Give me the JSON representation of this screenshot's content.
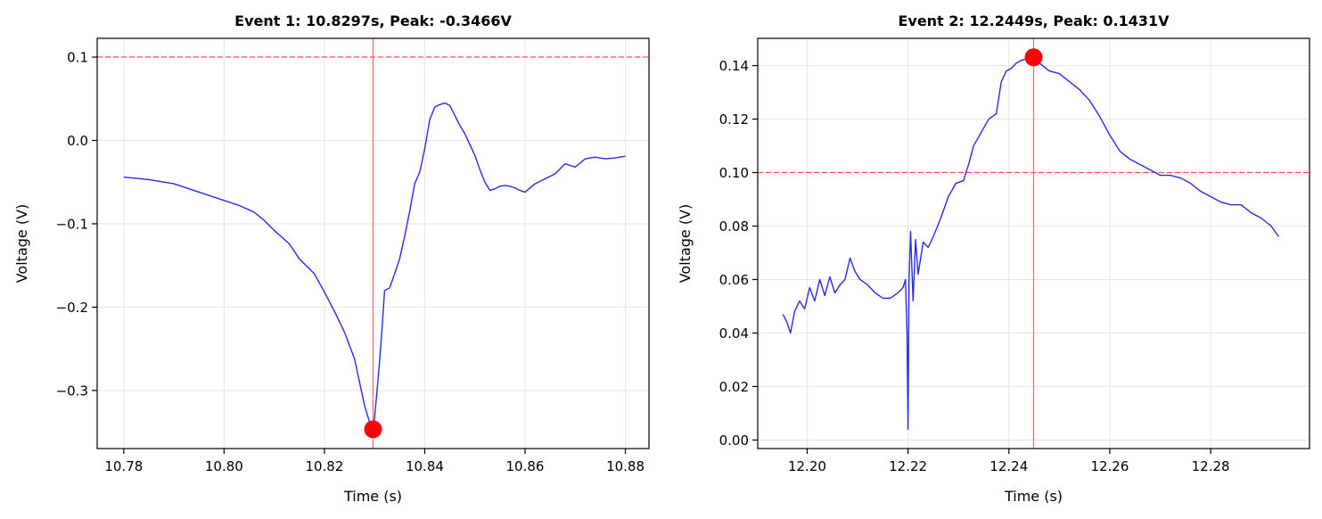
{
  "figure": {
    "background": "#ffffff",
    "colors": {
      "signal": "#2a2ae6",
      "threshold": "#ff4d4d",
      "marker": "#ff0000",
      "vline": "#ff6666",
      "grid": "#e6e6e6"
    }
  },
  "chart_data": [
    {
      "type": "line",
      "title": "Event 1: 10.8297s, Peak: -0.3466V",
      "xlabel": "Time (s)",
      "ylabel": "Voltage (V)",
      "xlim": [
        10.7747,
        10.8847
      ],
      "ylim": [
        -0.3697,
        0.1225
      ],
      "xticks": [
        10.78,
        10.8,
        10.82,
        10.84,
        10.86,
        10.88
      ],
      "xtick_labels": [
        "10.78",
        "10.80",
        "10.82",
        "10.84",
        "10.86",
        "10.88"
      ],
      "yticks": [
        -0.3,
        -0.2,
        -0.1,
        0.0,
        0.1
      ],
      "ytick_labels": [
        "−0.3",
        "−0.2",
        "−0.1",
        "0.0",
        "0.1"
      ],
      "grid": true,
      "threshold": 0.1,
      "event_time": 10.8297,
      "peak": {
        "x": 10.8297,
        "y": -0.3466
      },
      "series": [
        {
          "x": [
            10.78,
            10.785,
            10.79,
            10.795,
            10.8,
            10.803,
            10.806,
            10.808,
            10.81,
            10.813,
            10.815,
            10.818,
            10.82,
            10.822,
            10.824,
            10.825,
            10.826,
            10.827,
            10.828,
            10.829,
            10.8297,
            10.83,
            10.8305,
            10.831,
            10.8315,
            10.832,
            10.833,
            10.834,
            10.835,
            10.836,
            10.837,
            10.838,
            10.839,
            10.84,
            10.841,
            10.842,
            10.843,
            10.844,
            10.845,
            10.846,
            10.847,
            10.848,
            10.849,
            10.85,
            10.851,
            10.852,
            10.853,
            10.854,
            10.855,
            10.856,
            10.857,
            10.858,
            10.859,
            10.86,
            10.862,
            10.864,
            10.866,
            10.868,
            10.87,
            10.872,
            10.874,
            10.876,
            10.878,
            10.88
          ],
          "y": [
            -0.044,
            -0.047,
            -0.052,
            -0.062,
            -0.072,
            -0.078,
            -0.086,
            -0.096,
            -0.108,
            -0.124,
            -0.142,
            -0.16,
            -0.182,
            -0.205,
            -0.23,
            -0.246,
            -0.262,
            -0.29,
            -0.318,
            -0.338,
            -0.3466,
            -0.333,
            -0.3,
            -0.265,
            -0.225,
            -0.18,
            -0.177,
            -0.16,
            -0.142,
            -0.115,
            -0.085,
            -0.052,
            -0.038,
            -0.01,
            0.025,
            0.04,
            0.043,
            0.045,
            0.042,
            0.03,
            0.018,
            0.008,
            -0.005,
            -0.018,
            -0.035,
            -0.05,
            -0.06,
            -0.058,
            -0.055,
            -0.054,
            -0.055,
            -0.057,
            -0.06,
            -0.062,
            -0.052,
            -0.046,
            -0.04,
            -0.028,
            -0.032,
            -0.022,
            -0.02,
            -0.022,
            -0.021,
            -0.019
          ]
        }
      ]
    },
    {
      "type": "line",
      "title": "Event 2: 12.2449s, Peak: 0.1431V",
      "xlabel": "Time (s)",
      "ylabel": "Voltage (V)",
      "xlim": [
        12.1902,
        12.2996
      ],
      "ylim": [
        -0.0032,
        0.1502
      ],
      "xticks": [
        12.2,
        12.22,
        12.24,
        12.26,
        12.28
      ],
      "xtick_labels": [
        "12.20",
        "12.22",
        "12.24",
        "12.26",
        "12.28"
      ],
      "yticks": [
        0.0,
        0.02,
        0.04,
        0.06,
        0.08,
        0.1,
        0.12,
        0.14
      ],
      "ytick_labels": [
        "0.00",
        "0.02",
        "0.04",
        "0.06",
        "0.08",
        "0.10",
        "0.12",
        "0.14"
      ],
      "grid": true,
      "threshold": 0.1,
      "event_time": 12.2449,
      "peak": {
        "x": 12.2449,
        "y": 0.1431
      },
      "series": [
        {
          "x": [
            12.1952,
            12.196,
            12.1967,
            12.1975,
            12.1985,
            12.1995,
            12.2005,
            12.2015,
            12.2025,
            12.2035,
            12.2045,
            12.2055,
            12.2065,
            12.2075,
            12.2085,
            12.2095,
            12.2105,
            12.212,
            12.2135,
            12.215,
            12.2165,
            12.218,
            12.219,
            12.2195,
            12.2198,
            12.22,
            12.2202,
            12.2205,
            12.221,
            12.2215,
            12.222,
            12.223,
            12.224,
            12.225,
            12.2265,
            12.228,
            12.2295,
            12.231,
            12.232,
            12.233,
            12.2345,
            12.236,
            12.2375,
            12.2385,
            12.2395,
            12.2405,
            12.2415,
            12.2425,
            12.2435,
            12.2445,
            12.2449,
            12.246,
            12.248,
            12.25,
            12.252,
            12.254,
            12.256,
            12.258,
            12.26,
            12.262,
            12.264,
            12.266,
            12.268,
            12.27,
            12.272,
            12.274,
            12.276,
            12.278,
            12.28,
            12.282,
            12.284,
            12.286,
            12.288,
            12.29,
            12.292,
            12.2935
          ],
          "y": [
            0.047,
            0.044,
            0.04,
            0.048,
            0.052,
            0.049,
            0.057,
            0.052,
            0.06,
            0.054,
            0.061,
            0.055,
            0.058,
            0.06,
            0.068,
            0.063,
            0.06,
            0.058,
            0.055,
            0.053,
            0.053,
            0.055,
            0.057,
            0.06,
            0.04,
            0.004,
            0.06,
            0.078,
            0.052,
            0.075,
            0.062,
            0.074,
            0.072,
            0.076,
            0.083,
            0.091,
            0.096,
            0.097,
            0.103,
            0.11,
            0.115,
            0.12,
            0.122,
            0.134,
            0.138,
            0.139,
            0.141,
            0.142,
            0.1425,
            0.143,
            0.1431,
            0.141,
            0.138,
            0.137,
            0.134,
            0.131,
            0.127,
            0.121,
            0.114,
            0.108,
            0.105,
            0.103,
            0.101,
            0.099,
            0.099,
            0.098,
            0.096,
            0.093,
            0.091,
            0.089,
            0.088,
            0.088,
            0.085,
            0.083,
            0.08,
            0.076
          ]
        }
      ]
    }
  ]
}
